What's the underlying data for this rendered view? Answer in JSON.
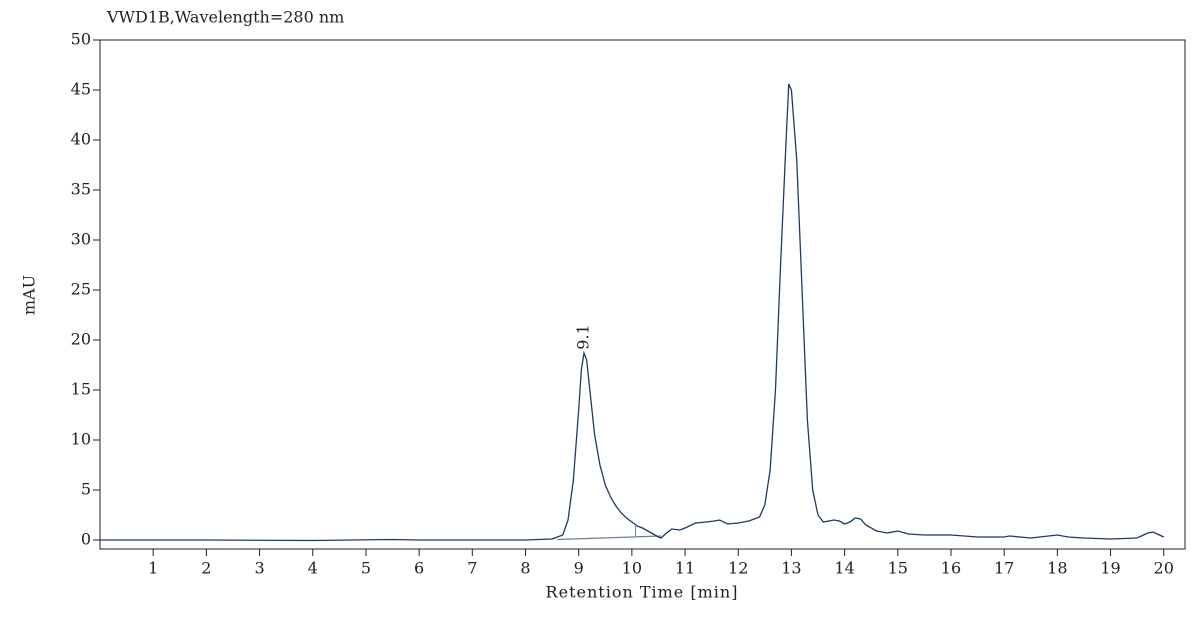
{
  "chart_data": {
    "type": "line",
    "title": "VWD1B,Wavelength=280 nm",
    "x_label": "Retention Time [min]",
    "y_label": "mAU",
    "xlim": [
      0,
      20.4
    ],
    "ylim": [
      -0.9,
      50
    ],
    "xticks": [
      1,
      2,
      3,
      4,
      5,
      6,
      7,
      8,
      9,
      10,
      11,
      12,
      13,
      14,
      15,
      16,
      17,
      18,
      19,
      20
    ],
    "yticks": [
      0,
      5,
      10,
      15,
      20,
      25,
      30,
      35,
      40,
      45,
      50
    ],
    "series": [
      {
        "color": "#1f3a5f",
        "x": [
          0,
          2,
          4,
          5.5,
          6,
          8,
          8.5,
          8.7,
          8.8,
          8.9,
          9.0,
          9.05,
          9.1,
          9.15,
          9.2,
          9.3,
          9.4,
          9.5,
          9.6,
          9.7,
          9.8,
          9.9,
          10.0,
          10.1,
          10.2,
          10.3,
          10.4,
          10.5,
          10.55,
          10.65,
          10.75,
          10.9,
          11.0,
          11.2,
          11.4,
          11.55,
          11.65,
          11.8,
          12.0,
          12.2,
          12.4,
          12.5,
          12.6,
          12.7,
          12.8,
          12.9,
          12.95,
          13.0,
          13.1,
          13.2,
          13.3,
          13.4,
          13.5,
          13.6,
          13.8,
          13.9,
          14.0,
          14.1,
          14.2,
          14.3,
          14.4,
          14.6,
          14.8,
          15.0,
          15.2,
          15.5,
          16.0,
          16.5,
          17.0,
          17.1,
          17.5,
          18.0,
          18.2,
          18.5,
          19.0,
          19.5,
          19.7,
          19.8,
          20.0
        ],
        "values": [
          0,
          0,
          -0.05,
          0.05,
          0,
          0,
          0.1,
          0.5,
          2,
          6,
          13,
          17,
          18.7,
          18,
          15.5,
          10.5,
          7.5,
          5.5,
          4.3,
          3.4,
          2.7,
          2.2,
          1.8,
          1.4,
          1.2,
          0.9,
          0.6,
          0.3,
          0.2,
          0.7,
          1.1,
          1.0,
          1.2,
          1.7,
          1.8,
          1.9,
          2.0,
          1.6,
          1.7,
          1.9,
          2.3,
          3.5,
          7,
          15,
          28,
          40,
          45.6,
          45,
          38,
          25,
          12,
          5,
          2.5,
          1.8,
          2.0,
          1.9,
          1.6,
          1.8,
          2.2,
          2.1,
          1.5,
          0.9,
          0.7,
          0.9,
          0.6,
          0.5,
          0.5,
          0.3,
          0.3,
          0.4,
          0.2,
          0.5,
          0.3,
          0.2,
          0.1,
          0.2,
          0.7,
          0.8,
          0.3
        ]
      }
    ],
    "baseline": {
      "color": "#6a7f99",
      "x": [
        8.6,
        10.55
      ],
      "values": [
        0.05,
        0.4
      ]
    },
    "drop_line": {
      "x": 10.07,
      "values": [
        0.3,
        1.4
      ]
    },
    "annotation": {
      "text": "9.1",
      "x": 9.1,
      "y": 20.3
    }
  }
}
